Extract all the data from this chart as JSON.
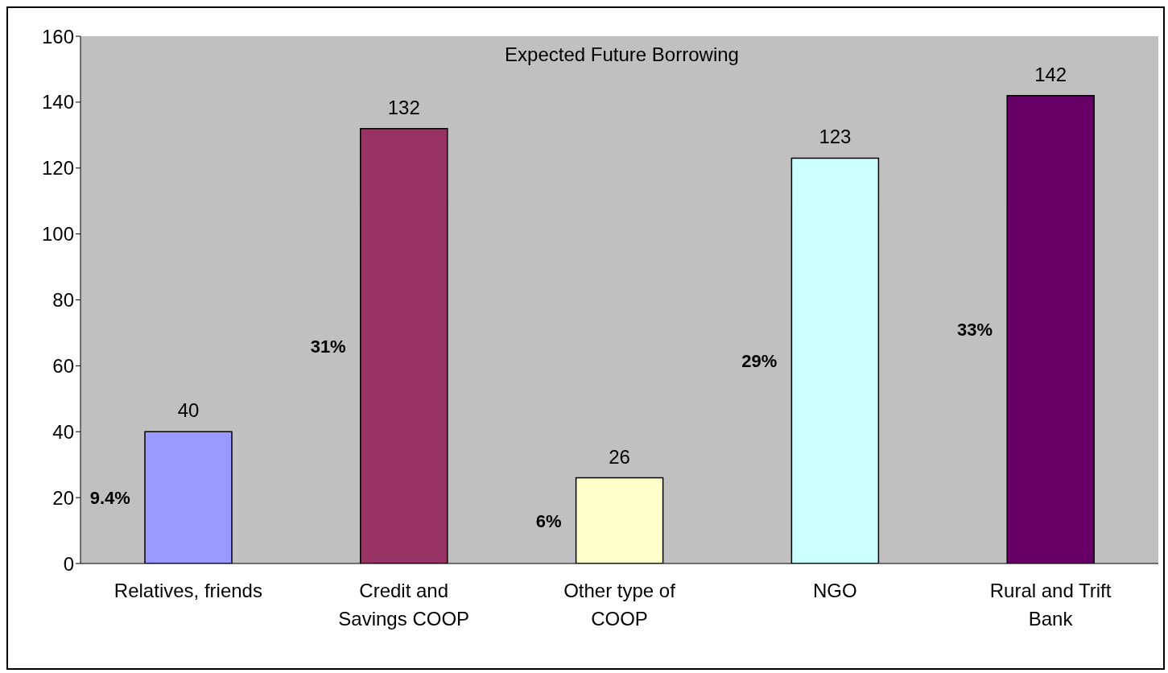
{
  "chart_data": {
    "type": "bar",
    "title": "Expected Future Borrowing",
    "categories": [
      "Relatives, friends",
      "Credit and Savings COOP",
      "Other type of COOP",
      "NGO",
      "Rural and Trift Bank"
    ],
    "values": [
      40,
      132,
      26,
      123,
      142
    ],
    "colors": [
      "#9999ff",
      "#993366",
      "#ffffcc",
      "#ccffff",
      "#660066"
    ],
    "ylim": [
      0,
      160
    ],
    "yticks": [
      0,
      20,
      40,
      60,
      80,
      100,
      120,
      140,
      160
    ],
    "grid": false,
    "data_labels": true,
    "annotations": [
      "9.4%",
      "31%",
      "6%",
      "29%",
      "33%"
    ]
  }
}
